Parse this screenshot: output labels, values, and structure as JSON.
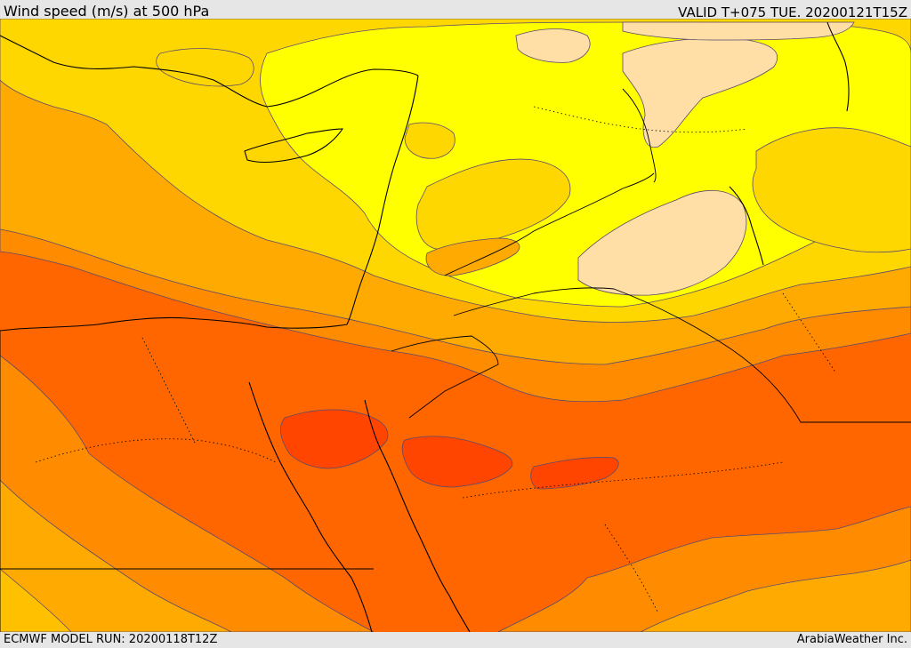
{
  "header": {
    "title": "Wind speed (m/s) at 500 hPa",
    "valid_time": "VALID T+075 TUE. 20200121T15Z"
  },
  "footer": {
    "model_run": "ECMWF MODEL RUN: 20200118T12Z",
    "credit": "ArabiaWeather Inc."
  },
  "map": {
    "variable": "wind speed at 500 hPa",
    "fill_colors": {
      "band_1": "#ffdfa5",
      "band_2": "#ffff00",
      "band_3": "#ffd700",
      "band_4": "#ffaa00",
      "band_5": "#ff8c00",
      "band_6": "#ff6600",
      "band_7": "#ff4500"
    },
    "line_colors": {
      "contour": "#5a4a6e",
      "coastline_border": "#000000"
    }
  }
}
